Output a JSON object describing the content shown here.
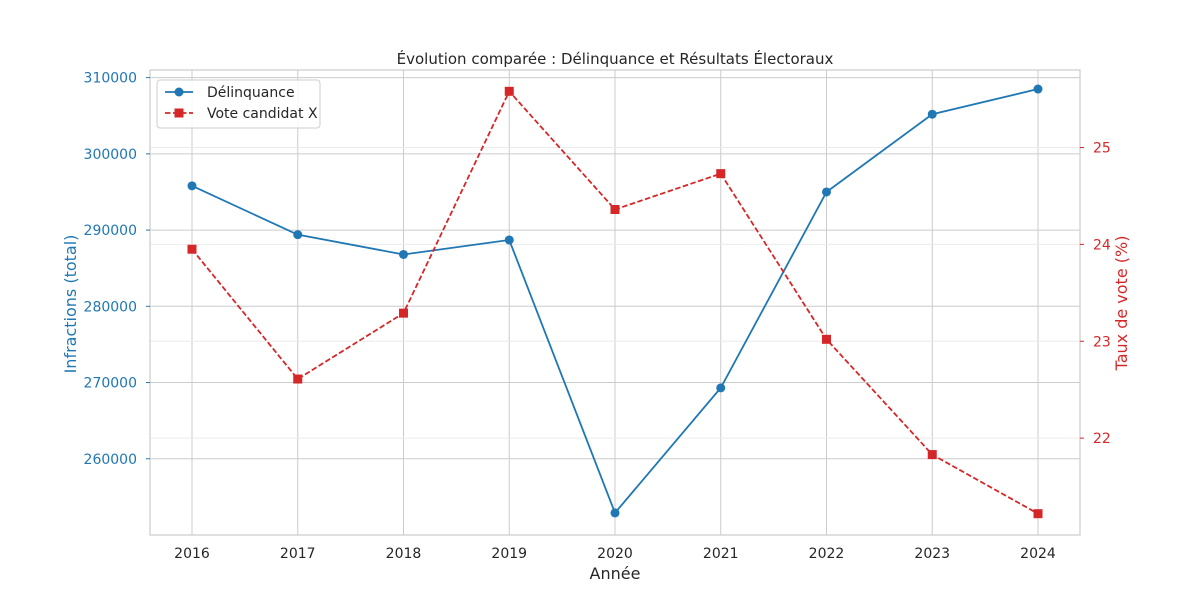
{
  "chart_data": {
    "type": "line",
    "title": "Évolution comparée : Délinquance et Résultats Électoraux",
    "xlabel": "Année",
    "ylabel_left": "Infractions (total)",
    "ylabel_right": "Taux de vote (%)",
    "categories": [
      "2016",
      "2017",
      "2018",
      "2019",
      "2020",
      "2021",
      "2022",
      "2023",
      "2024"
    ],
    "ylim_left": [
      250000,
      311000
    ],
    "ylim_right": [
      21.0,
      25.8
    ],
    "yticks_left": [
      260000,
      270000,
      280000,
      290000,
      300000,
      310000
    ],
    "yticks_right": [
      22,
      23,
      24,
      25
    ],
    "grid": true,
    "legend_position": "top-left",
    "series": [
      {
        "name": "Délinquance",
        "axis": "left",
        "color": "#1f77b4",
        "style": "solid",
        "marker": "circle",
        "values": [
          295800,
          289400,
          286800,
          288700,
          252900,
          269300,
          295000,
          305200,
          308500
        ]
      },
      {
        "name": "Vote candidat X",
        "axis": "right",
        "color": "#d62728",
        "style": "dashed",
        "marker": "square",
        "values": [
          23.95,
          22.61,
          23.29,
          25.58,
          24.36,
          24.73,
          23.02,
          21.83,
          21.22
        ]
      }
    ]
  }
}
